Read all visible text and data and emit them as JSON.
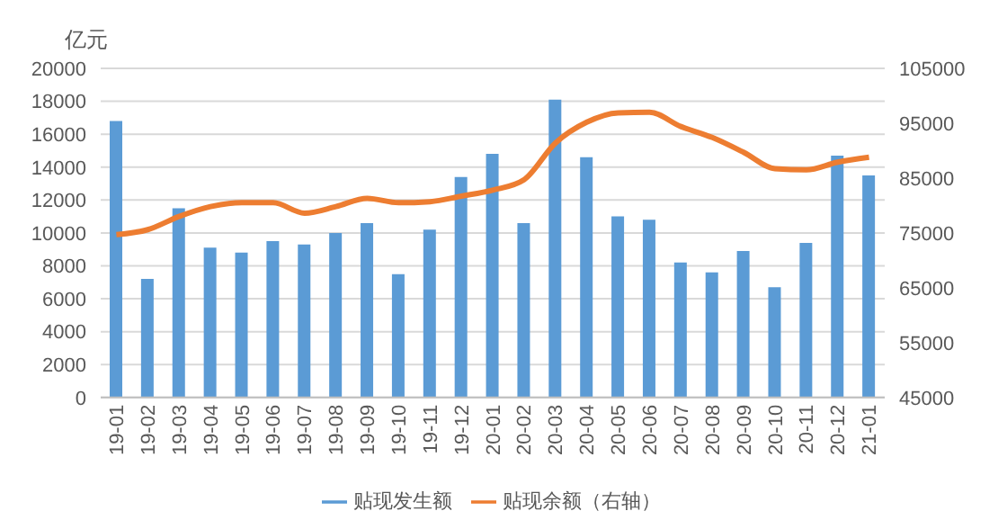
{
  "chart_data": {
    "type": "bar",
    "ylabel": "亿元",
    "categories": [
      "19-01",
      "19-02",
      "19-03",
      "19-04",
      "19-05",
      "19-06",
      "19-07",
      "19-08",
      "19-09",
      "19-10",
      "19-11",
      "19-12",
      "20-01",
      "20-02",
      "20-03",
      "20-04",
      "20-05",
      "20-06",
      "20-07",
      "20-08",
      "20-09",
      "20-10",
      "20-11",
      "20-12",
      "21-01"
    ],
    "series": [
      {
        "name": "贴现发生额",
        "color": "#5b9bd5",
        "values": [
          16800,
          7200,
          11500,
          9100,
          8800,
          9500,
          9300,
          10000,
          10600,
          7500,
          10200,
          13400,
          14800,
          10600,
          18100,
          14600,
          11000,
          10800,
          8200,
          7600,
          8900,
          6700,
          9400,
          14700,
          13500
        ]
      },
      {
        "name": "贴现余额（右轴）",
        "type": "line",
        "axis": "y2",
        "color": "#ed7d31",
        "values": [
          74700,
          75600,
          78000,
          79800,
          80500,
          80500,
          78600,
          79800,
          81300,
          80500,
          80700,
          81700,
          82800,
          84700,
          91400,
          95200,
          96900,
          97000,
          94400,
          92400,
          89700,
          86700,
          86500,
          87900,
          88800
        ]
      }
    ],
    "ylim": [
      0,
      20000
    ],
    "yticks": [
      0,
      2000,
      4000,
      6000,
      8000,
      10000,
      12000,
      14000,
      16000,
      18000,
      20000
    ],
    "y2lim": [
      45000,
      105000
    ],
    "y2ticks": [
      45000,
      55000,
      65000,
      75000,
      85000,
      95000,
      105000
    ],
    "grid": "y",
    "legend": "bottom",
    "marker": "none"
  }
}
